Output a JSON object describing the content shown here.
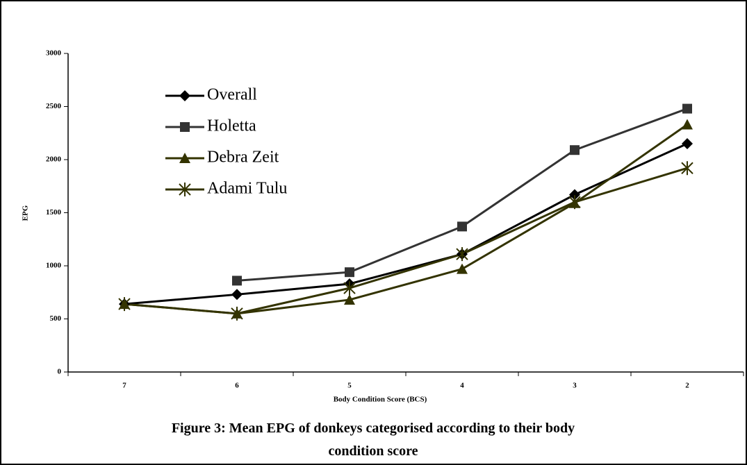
{
  "chart_data": {
    "type": "line",
    "title": "Figure 3: Mean EPG of donkeys categorised according to their body condition score",
    "x_label": "Body Condition Score (BCS)",
    "y_label": "EPG",
    "categories": [
      "7",
      "6",
      "5",
      "4",
      "3",
      "2"
    ],
    "series": [
      {
        "name": "Overall",
        "color": "#000000",
        "marker": "diamond",
        "values": [
          640,
          730,
          830,
          1110,
          1670,
          2150
        ]
      },
      {
        "name": "Holetta",
        "color": "#333333",
        "marker": "square",
        "values": [
          null,
          860,
          940,
          1370,
          2090,
          2480
        ]
      },
      {
        "name": "Debra Zeit",
        "color": "#333300",
        "marker": "triangle",
        "values": [
          640,
          550,
          680,
          970,
          1590,
          2330
        ]
      },
      {
        "name": "Adami Tulu",
        "color": "#333300",
        "marker": "star",
        "values": [
          640,
          550,
          790,
          1110,
          1600,
          1920
        ]
      }
    ],
    "ylim": [
      0,
      3000
    ],
    "yticks": [
      0,
      500,
      1000,
      1500,
      2000,
      2500,
      3000
    ],
    "grid": false,
    "legend": "top-left"
  }
}
